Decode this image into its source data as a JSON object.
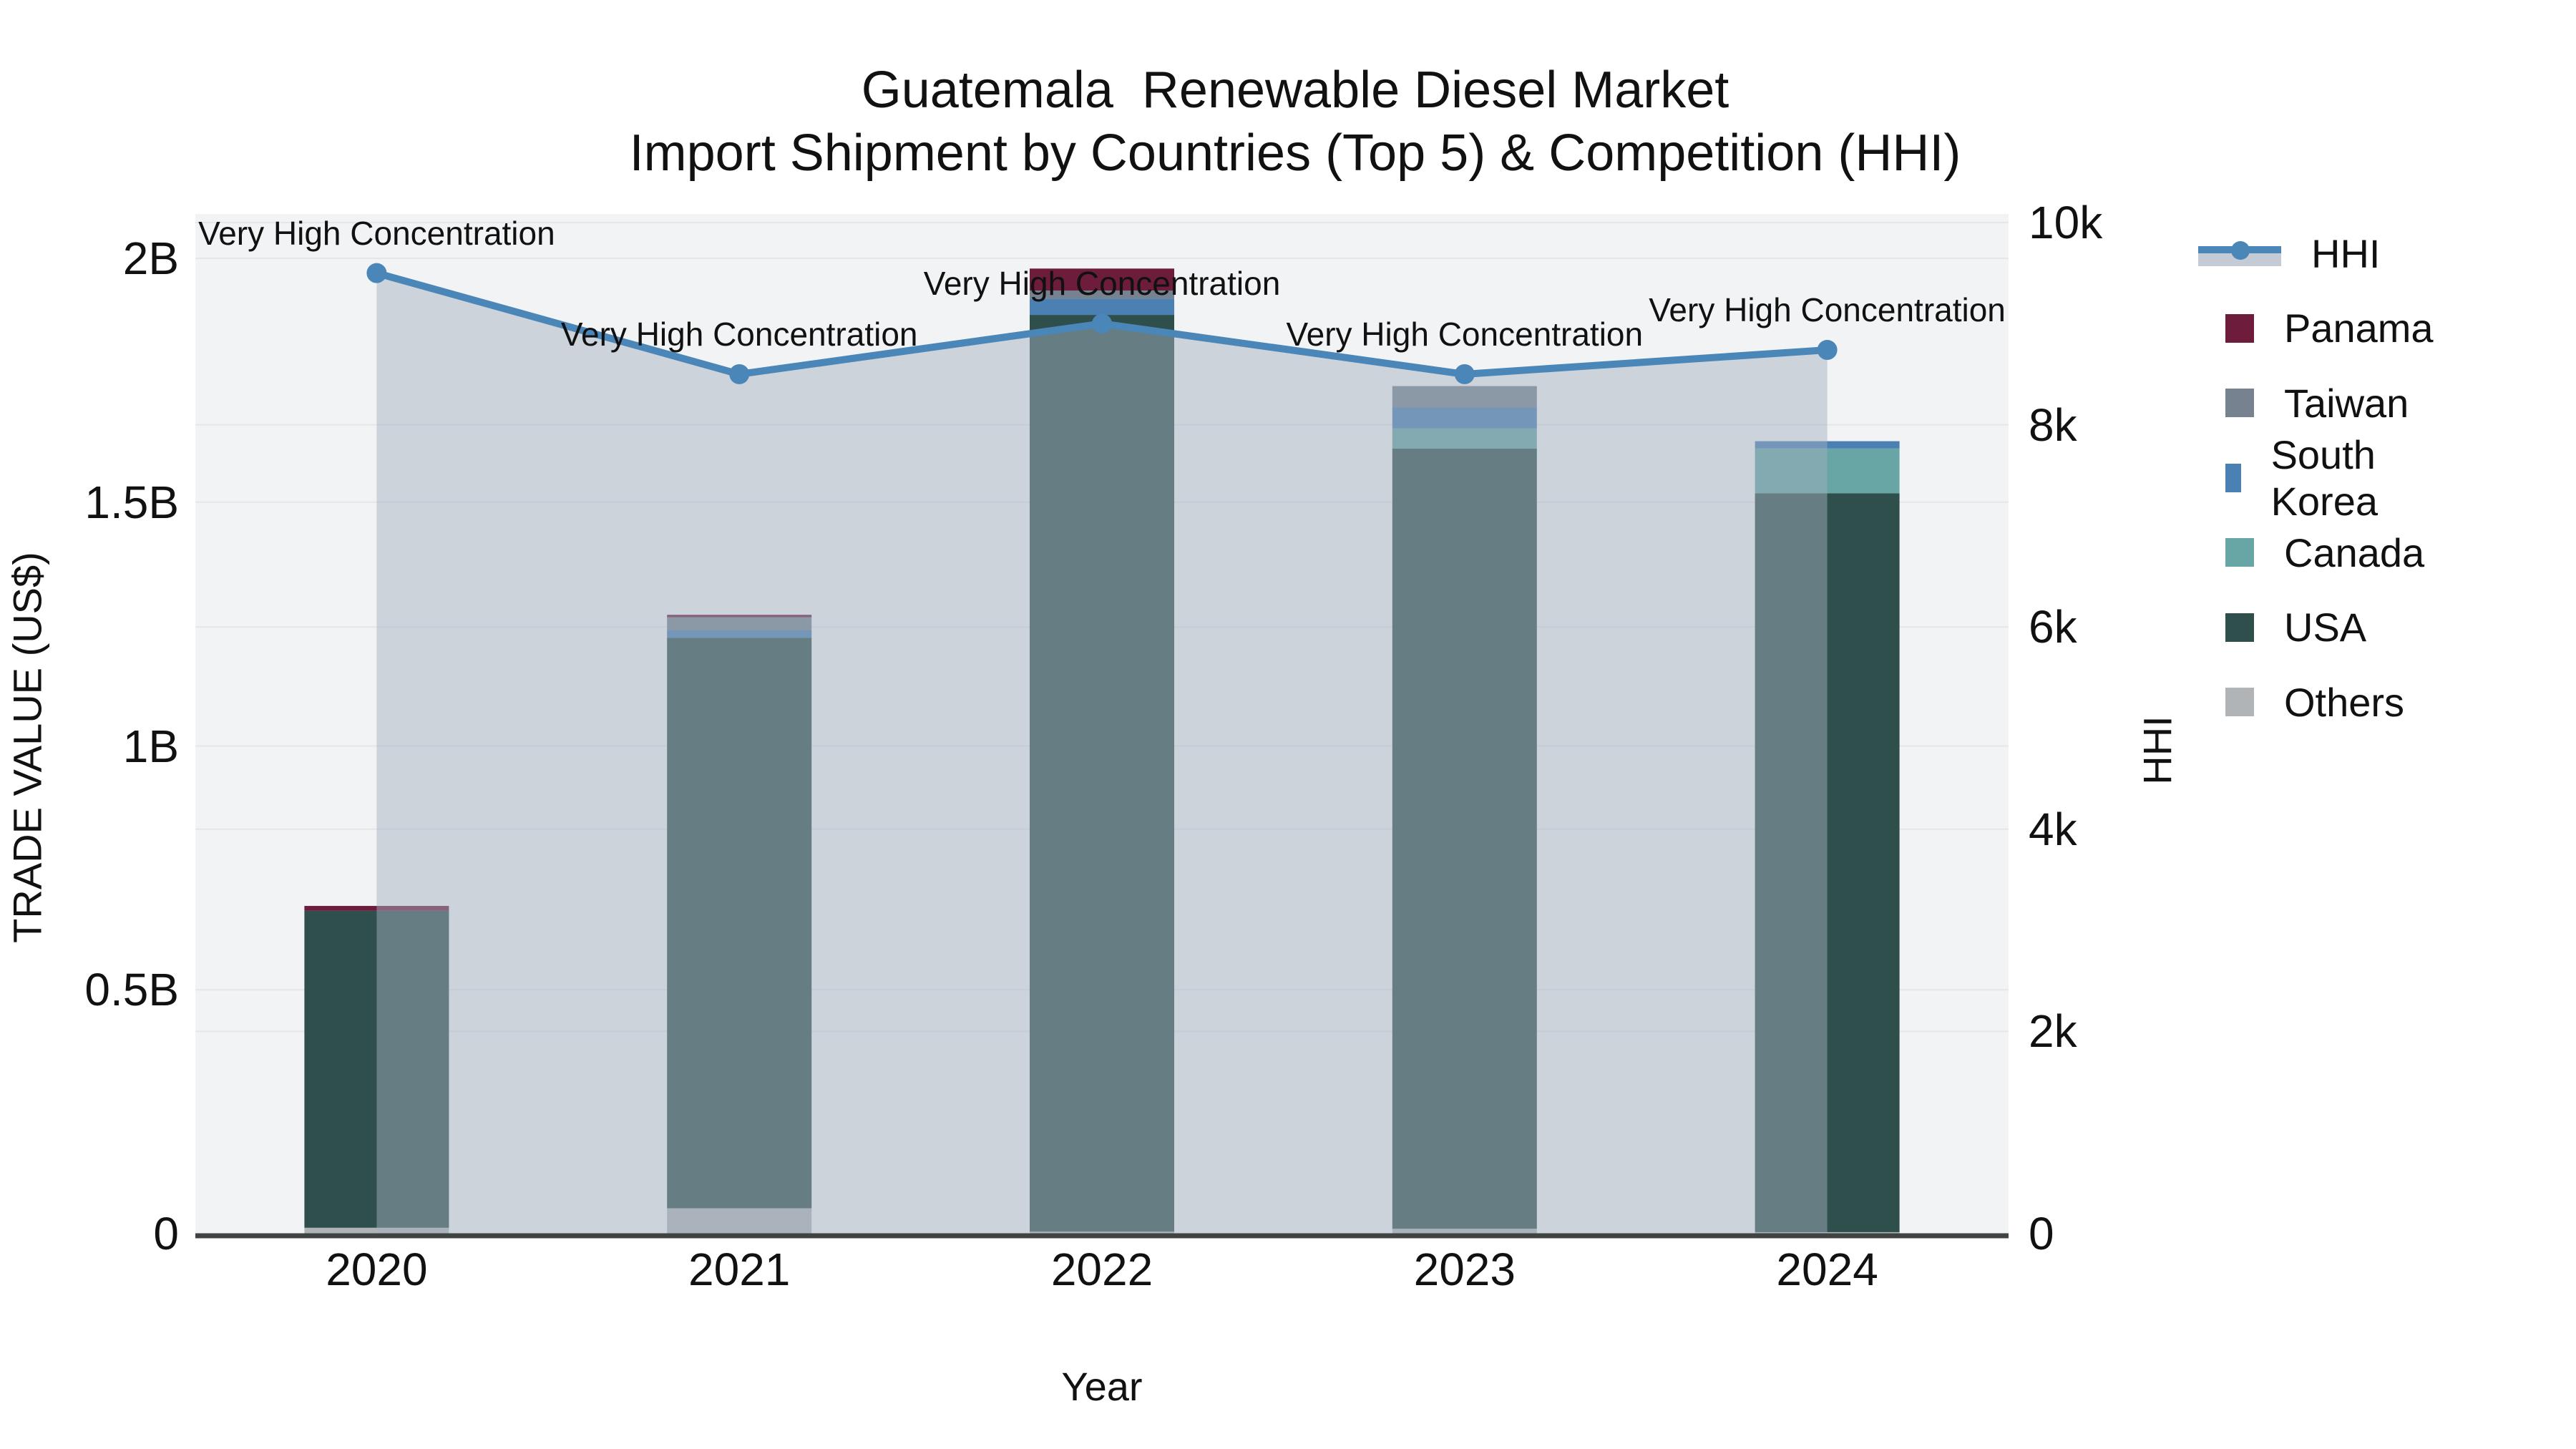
{
  "title": "Guatemala  Renewable Diesel Market",
  "subtitle": "Import Shipment by Countries (Top 5) & Competition (HHI)",
  "chart_data": {
    "type": "combo-stacked-bar-line",
    "title": "Guatemala  Renewable Diesel Market",
    "subtitle": "Import Shipment by Countries (Top 5) & Competition (HHI)",
    "xlabel": "Year",
    "ylabel_left": "TRADE VALUE (US$)",
    "ylabel_right": "HHI",
    "categories": [
      "2020",
      "2021",
      "2022",
      "2023",
      "2024"
    ],
    "bar_unit": "USD millions (stacked import trade value)",
    "bar_series_stack_order_bottom_to_top": [
      "Others",
      "USA",
      "Canada",
      "South Korea",
      "Taiwan",
      "Panama"
    ],
    "series": [
      {
        "name": "Others",
        "color": "#B1B4B6",
        "values": [
          12,
          52,
          4,
          10,
          3
        ]
      },
      {
        "name": "USA",
        "color": "#2F4F4C",
        "values": [
          650,
          1170,
          1880,
          1600,
          1515
        ]
      },
      {
        "name": "Canada",
        "color": "#67A6A4",
        "values": [
          0,
          0,
          0,
          41,
          92
        ]
      },
      {
        "name": "South Korea",
        "color": "#4A80B2",
        "values": [
          0,
          15,
          33,
          43,
          15
        ]
      },
      {
        "name": "Taiwan",
        "color": "#76828F",
        "values": [
          0,
          27,
          17,
          44,
          0
        ]
      },
      {
        "name": "Panama",
        "color": "#6E1C3C",
        "values": [
          10,
          5,
          45,
          0,
          0
        ]
      }
    ],
    "bar_totals_millions": [
      672,
      1269,
      1979,
      1738,
      1625
    ],
    "line_series": {
      "name": "HHI",
      "color": "#4A86B8",
      "area_fill": "rgba(163,175,192,0.48)",
      "values": [
        9500,
        8500,
        9000,
        8500,
        8740
      ]
    },
    "annotations": [
      "Very High Concentration",
      "Very High Concentration",
      "Very High Concentration",
      "Very High Concentration",
      "Very High Concentration"
    ],
    "y_left_ticks": [
      "0",
      "0.5B",
      "1B",
      "1.5B",
      "2B"
    ],
    "y_left_max_millions": 2000,
    "y_right_ticks": [
      "0",
      "2k",
      "4k",
      "6k",
      "8k",
      "10k"
    ],
    "y_right_max": 10000,
    "grid": true,
    "legend_position": "right",
    "legend_order": [
      "HHI",
      "Panama",
      "Taiwan",
      "South Korea",
      "Canada",
      "USA",
      "Others"
    ],
    "colors": {
      "plot_background": "#F2F3F4",
      "gridline": "#E4E6E8",
      "axis_line": "#3F4443",
      "hhi_line": "#4A86B8",
      "area_fill": "rgba(163,175,192,0.48)"
    }
  },
  "axis_titles": {
    "left": "TRADE VALUE (US$)",
    "right": "HHI",
    "bottom": "Year"
  }
}
